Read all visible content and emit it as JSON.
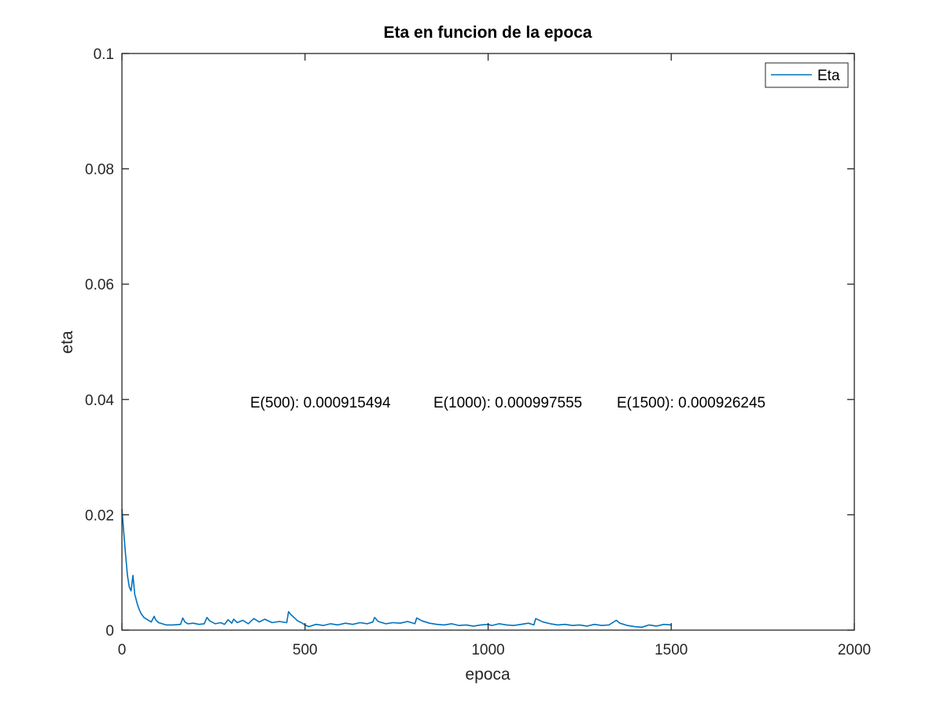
{
  "chart_data": {
    "type": "line",
    "title": "Eta en funcion de la epoca",
    "xlabel": "epoca",
    "ylabel": "eta",
    "xlim": [
      0,
      2000
    ],
    "ylim": [
      0,
      0.1
    ],
    "xticks": [
      0,
      500,
      1000,
      1500,
      2000
    ],
    "xtick_labels": [
      "0",
      "500",
      "1000",
      "1500",
      "2000"
    ],
    "yticks": [
      0,
      0.02,
      0.04,
      0.06,
      0.08,
      0.1
    ],
    "ytick_labels": [
      "0",
      "0.02",
      "0.04",
      "0.06",
      "0.08",
      "0.1"
    ],
    "grid": false,
    "legend_position": "top-right",
    "series": [
      {
        "name": "Eta",
        "color": "#0072bd",
        "x": [
          0,
          5,
          10,
          15,
          20,
          25,
          30,
          35,
          38,
          42,
          47,
          52,
          60,
          70,
          80,
          88,
          92,
          100,
          110,
          120,
          140,
          160,
          166,
          172,
          180,
          195,
          210,
          225,
          232,
          240,
          255,
          270,
          280,
          290,
          300,
          305,
          315,
          330,
          345,
          360,
          375,
          390,
          410,
          430,
          450,
          455,
          460,
          470,
          480,
          490,
          500,
          510,
          530,
          550,
          570,
          590,
          610,
          630,
          650,
          670,
          685,
          690,
          700,
          720,
          740,
          760,
          780,
          800,
          805,
          820,
          840,
          860,
          880,
          900,
          920,
          940,
          960,
          980,
          1000,
          1010,
          1030,
          1050,
          1070,
          1090,
          1110,
          1125,
          1130,
          1150,
          1170,
          1190,
          1210,
          1230,
          1250,
          1270,
          1290,
          1310,
          1330,
          1350,
          1360,
          1380,
          1400,
          1420,
          1440,
          1460,
          1480,
          1500
        ],
        "y": [
          0.021,
          0.017,
          0.013,
          0.0095,
          0.0075,
          0.0068,
          0.0095,
          0.0062,
          0.0055,
          0.0045,
          0.0036,
          0.0029,
          0.0022,
          0.0018,
          0.0014,
          0.0024,
          0.0018,
          0.0013,
          0.0011,
          0.0009,
          0.0009,
          0.001,
          0.0021,
          0.0014,
          0.0011,
          0.0012,
          0.001,
          0.0011,
          0.0022,
          0.0016,
          0.0011,
          0.0013,
          0.001,
          0.0018,
          0.0012,
          0.0019,
          0.0013,
          0.0017,
          0.0011,
          0.002,
          0.0014,
          0.0019,
          0.0013,
          0.0015,
          0.0013,
          0.0032,
          0.0028,
          0.0022,
          0.0016,
          0.0013,
          0.0009,
          0.0006,
          0.001,
          0.0008,
          0.0011,
          0.0009,
          0.0012,
          0.001,
          0.0013,
          0.0011,
          0.0014,
          0.0022,
          0.0015,
          0.0011,
          0.0013,
          0.0012,
          0.0015,
          0.0011,
          0.0021,
          0.0016,
          0.0012,
          0.001,
          0.0009,
          0.0011,
          0.0008,
          0.0009,
          0.0007,
          0.0009,
          0.001,
          0.0008,
          0.0011,
          0.0009,
          0.0008,
          0.001,
          0.0012,
          0.0009,
          0.002,
          0.0014,
          0.0011,
          0.0009,
          0.001,
          0.0008,
          0.0009,
          0.0007,
          0.001,
          0.0008,
          0.0009,
          0.0017,
          0.0012,
          0.0008,
          0.0006,
          0.0005,
          0.0009,
          0.0007,
          0.001,
          0.0009
        ]
      }
    ],
    "annotations": [
      "E(500): 0.000915494",
      "E(1000): 0.000997555",
      "E(1500): 0.000926245"
    ]
  }
}
